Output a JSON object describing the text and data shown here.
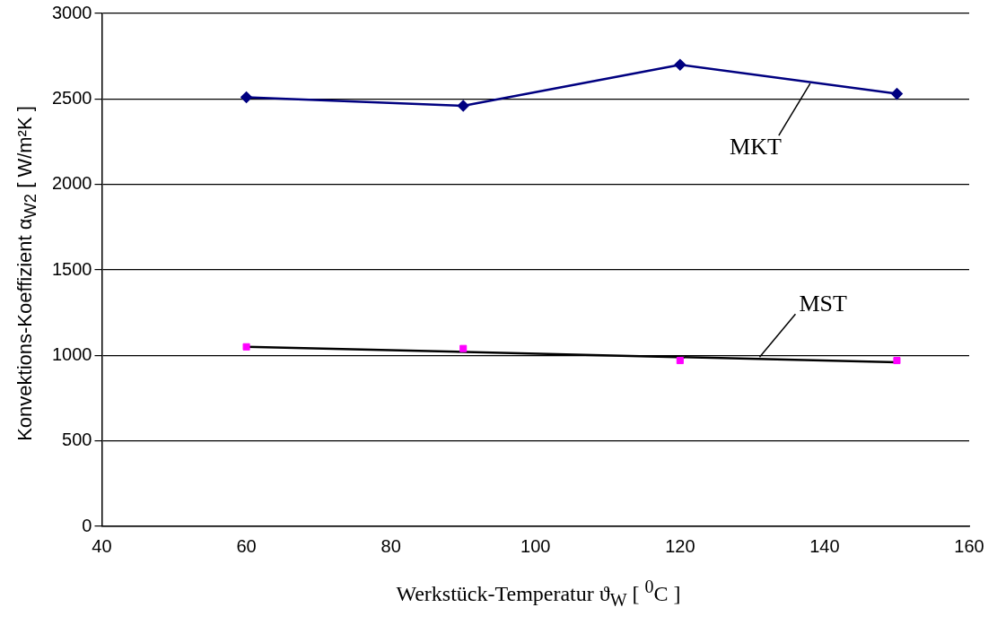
{
  "chart_data": {
    "type": "line",
    "xlabel": "Werkstück-Temperatur ϑ$_{W}$ [ $^{0}$C ]",
    "ylabel": "Konvektions-Koeffizient α$_{W2}$ [ W/m²K ]",
    "xlim": [
      40,
      160
    ],
    "xticks": [
      40,
      60,
      80,
      100,
      120,
      140,
      160
    ],
    "ylim": [
      0,
      3000
    ],
    "yticks": [
      0,
      500,
      1000,
      1500,
      2000,
      2500,
      3000
    ],
    "grid": "y",
    "legend": false,
    "series": [
      {
        "type": "line",
        "color": "#000080",
        "marker": "diamond",
        "x": [
          60,
          90,
          120,
          150
        ],
        "values": [
          2510,
          2460,
          2700,
          2530
        ]
      },
      {
        "type": "scatter",
        "color": "#ff00ff",
        "marker": "square",
        "x": [
          60,
          90,
          120,
          150
        ],
        "values": [
          1050,
          1040,
          970,
          970
        ]
      },
      {
        "type": "line",
        "color": "#000000",
        "marker": "none",
        "x": [
          60,
          150
        ],
        "values": [
          1050,
          960
        ]
      }
    ],
    "annotations": [
      {
        "text": "MKT",
        "x": 138,
        "y": 2590
      },
      {
        "text": "MST",
        "x": 131,
        "y": 990
      }
    ]
  }
}
